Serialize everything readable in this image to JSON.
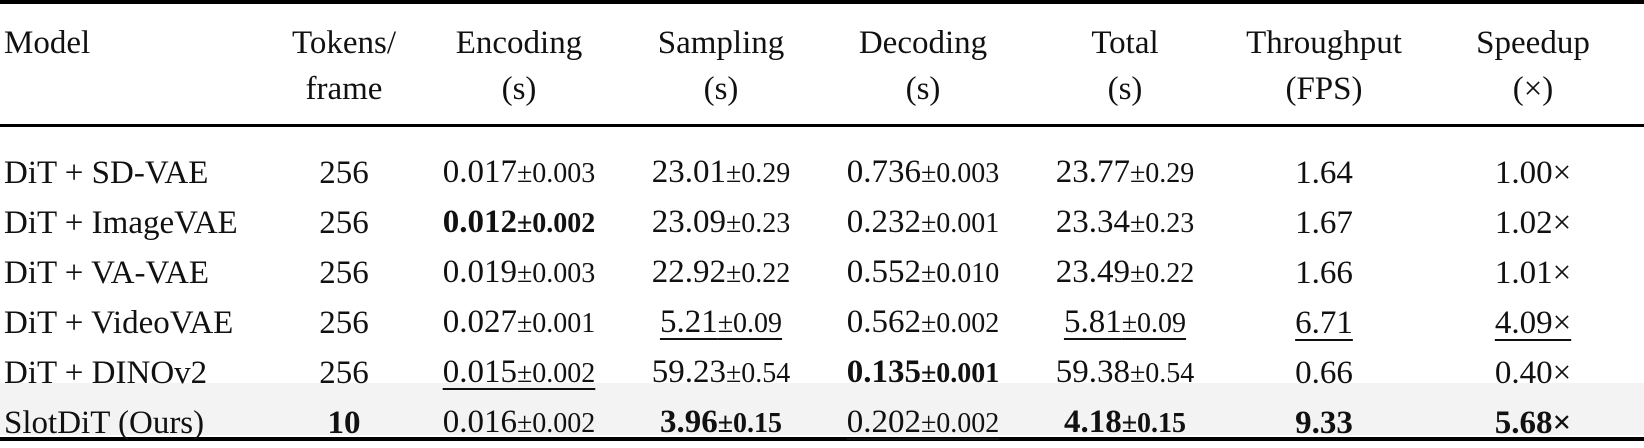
{
  "columns": [
    {
      "line1": "Model",
      "line2": ""
    },
    {
      "line1": "Tokens/",
      "line2": "frame"
    },
    {
      "line1": "Encoding",
      "line2": "(s)"
    },
    {
      "line1": "Sampling",
      "line2": "(s)"
    },
    {
      "line1": "Decoding",
      "line2": "(s)"
    },
    {
      "line1": "Total",
      "line2": "(s)"
    },
    {
      "line1": "Throughput",
      "line2": "(FPS)"
    },
    {
      "line1": "Speedup",
      "line2": "(×)"
    }
  ],
  "rows": [
    {
      "model": "DiT + SD-VAE",
      "tokens": "256",
      "enc_mean": "0.017",
      "enc_pm": "±0.003",
      "samp_mean": "23.01",
      "samp_pm": "±0.29",
      "dec_mean": "0.736",
      "dec_pm": "±0.003",
      "tot_mean": "23.77",
      "tot_pm": "±0.29",
      "fps": "1.64",
      "speedup": "1.00×"
    },
    {
      "model": "DiT + ImageVAE",
      "tokens": "256",
      "enc_mean": "0.012",
      "enc_pm": "±0.002",
      "samp_mean": "23.09",
      "samp_pm": "±0.23",
      "dec_mean": "0.232",
      "dec_pm": "±0.001",
      "tot_mean": "23.34",
      "tot_pm": "±0.23",
      "fps": "1.67",
      "speedup": "1.02×"
    },
    {
      "model": "DiT + VA-VAE",
      "tokens": "256",
      "enc_mean": "0.019",
      "enc_pm": "±0.003",
      "samp_mean": "22.92",
      "samp_pm": "±0.22",
      "dec_mean": "0.552",
      "dec_pm": "±0.010",
      "tot_mean": "23.49",
      "tot_pm": "±0.22",
      "fps": "1.66",
      "speedup": "1.01×"
    },
    {
      "model": "DiT + VideoVAE",
      "tokens": "256",
      "enc_mean": "0.027",
      "enc_pm": "±0.001",
      "samp_mean": "5.21",
      "samp_pm": "±0.09",
      "dec_mean": "0.562",
      "dec_pm": "±0.002",
      "tot_mean": "5.81",
      "tot_pm": "±0.09",
      "fps": "6.71",
      "speedup": "4.09×"
    },
    {
      "model": "DiT + DINOv2",
      "tokens": "256",
      "enc_mean": "0.015",
      "enc_pm": "±0.002",
      "samp_mean": "59.23",
      "samp_pm": "±0.54",
      "dec_mean": "0.135",
      "dec_pm": "±0.001",
      "tot_mean": "59.38",
      "tot_pm": "±0.54",
      "fps": "0.66",
      "speedup": "0.40×"
    },
    {
      "model": "SlotDiT (Ours)",
      "tokens": "10",
      "enc_mean": "0.016",
      "enc_pm": "±0.002",
      "samp_mean": "3.96",
      "samp_pm": "±0.15",
      "dec_mean": "0.202",
      "dec_pm": "±0.002",
      "tot_mean": "4.18",
      "tot_pm": "±0.15",
      "fps": "9.33",
      "speedup": "5.68×"
    }
  ]
}
